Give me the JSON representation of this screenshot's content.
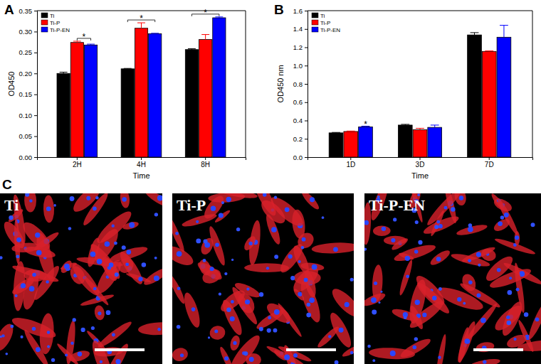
{
  "chart_data": [
    {
      "type": "bar",
      "title": "A",
      "x_label": "Time",
      "y_label": "OD450",
      "categories": [
        "2H",
        "4H",
        "8H"
      ],
      "series": [
        {
          "name": "Ti",
          "color": "#000000",
          "values": [
            0.2,
            0.211,
            0.257
          ],
          "errors": [
            0.003,
            0.001,
            0.002
          ]
        },
        {
          "name": "Ti-P",
          "color": "#ff0000",
          "values": [
            0.274,
            0.308,
            0.281
          ],
          "errors": [
            0.003,
            0.013,
            0.012
          ]
        },
        {
          "name": "Ti-P-EN",
          "color": "#0000ff",
          "values": [
            0.268,
            0.295,
            0.333
          ],
          "errors": [
            0.002,
            0.001,
            0.002
          ]
        }
      ],
      "ylim": [
        0,
        0.35
      ],
      "yticks": [
        {
          "value": 0,
          "label": "0.00"
        },
        {
          "value": 0.05,
          "label": "0.05"
        },
        {
          "value": 0.1,
          "label": "0.10"
        },
        {
          "value": 0.15,
          "label": "0.15"
        },
        {
          "value": 0.2,
          "label": "0.20"
        },
        {
          "value": 0.25,
          "label": "0.25"
        },
        {
          "value": 0.3,
          "label": "0.30"
        },
        {
          "value": 0.35,
          "label": "0.35"
        }
      ],
      "grid": false,
      "legend": "upper left",
      "annotations": [
        {
          "text": "*",
          "category": "2H",
          "series": [
            "Ti-P",
            "Ti-P-EN"
          ]
        },
        {
          "text": "*",
          "category": "4H",
          "series": [
            "Ti",
            "Ti-P-EN"
          ]
        },
        {
          "text": "*",
          "category": "8H",
          "series": [
            "Ti",
            "Ti-P-EN"
          ]
        }
      ]
    },
    {
      "type": "bar",
      "title": "B",
      "x_label": "Time",
      "y_label": "OD450 nm",
      "categories": [
        "1D",
        "3D",
        "7D"
      ],
      "series": [
        {
          "name": "Ti",
          "color": "#000000",
          "values": [
            0.265,
            0.35,
            1.335
          ],
          "errors": [
            0.005,
            0.008,
            0.025
          ]
        },
        {
          "name": "Ti-P",
          "color": "#ff0000",
          "values": [
            0.28,
            0.3,
            1.155
          ],
          "errors": [
            0.005,
            0.015,
            0.005
          ]
        },
        {
          "name": "Ti-P-EN",
          "color": "#0000ff",
          "values": [
            0.33,
            0.325,
            1.31
          ],
          "errors": [
            0.008,
            0.025,
            0.13
          ]
        }
      ],
      "ylim": [
        0,
        1.6
      ],
      "yticks": [
        {
          "value": 0,
          "label": "0.0"
        },
        {
          "value": 0.2,
          "label": "0.2"
        },
        {
          "value": 0.4,
          "label": "0.4"
        },
        {
          "value": 0.6,
          "label": "0.6"
        },
        {
          "value": 0.8,
          "label": "0.8"
        },
        {
          "value": 1.0,
          "label": "1.0"
        },
        {
          "value": 1.2,
          "label": "1.2"
        },
        {
          "value": 1.4,
          "label": "1.4"
        },
        {
          "value": 1.6,
          "label": "1.6"
        }
      ],
      "grid": false,
      "legend": "upper left",
      "annotations": [
        {
          "text": "*",
          "category": "1D",
          "series": [
            "Ti-P-EN"
          ]
        }
      ]
    }
  ],
  "image_panels": {
    "title": "C",
    "labels": [
      "Ti",
      "Ti-P",
      "Ti-P-EN"
    ]
  }
}
